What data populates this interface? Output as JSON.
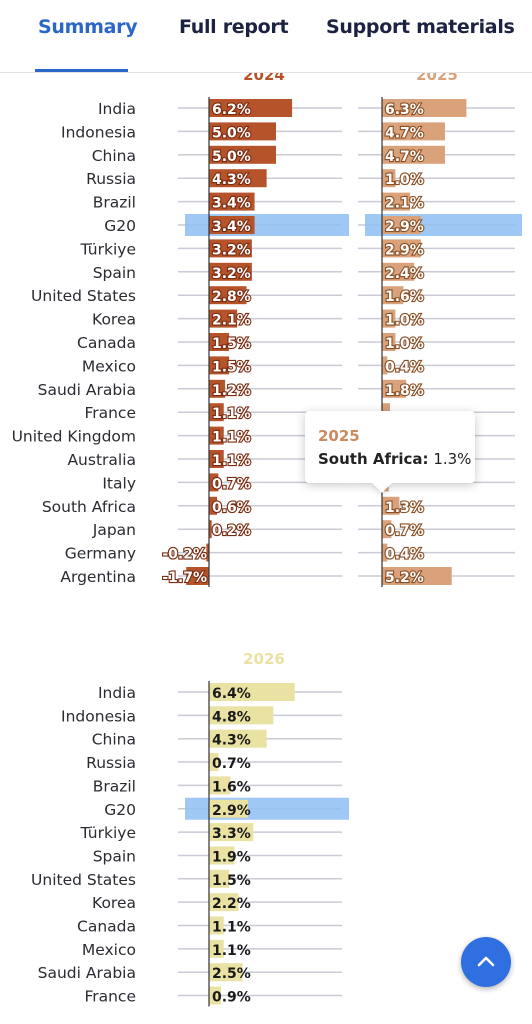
{
  "tabs": [
    {
      "label": "Summary",
      "active": true
    },
    {
      "label": "Full report",
      "active": false
    },
    {
      "label": "Support materials",
      "active": false
    }
  ],
  "tooltip": {
    "title": "2025",
    "country": "South Africa:",
    "value": "1.3%"
  },
  "scroll_top_icon": "chevron-up-icon",
  "colors": {
    "bar_2024": "#b5532a",
    "bar_2025": "#d9a27a",
    "bar_2026": "#e9e2a2",
    "highlight": "#8fbef2",
    "accent": "#2b67c9"
  },
  "chart_data": [
    {
      "type": "bar",
      "orientation": "horizontal",
      "title": "2024",
      "categories": [
        "India",
        "Indonesia",
        "China",
        "Russia",
        "Brazil",
        "G20",
        "Türkiye",
        "Spain",
        "United States",
        "Korea",
        "Canada",
        "Mexico",
        "Saudi Arabia",
        "France",
        "United Kingdom",
        "Australia",
        "Italy",
        "South Africa",
        "Japan",
        "Germany",
        "Argentina"
      ],
      "values": [
        6.2,
        5.0,
        5.0,
        4.3,
        3.4,
        3.4,
        3.2,
        3.2,
        2.8,
        2.1,
        1.5,
        1.5,
        1.2,
        1.1,
        1.1,
        1.1,
        0.7,
        0.6,
        0.2,
        -0.2,
        -1.7
      ],
      "labels": [
        "6.2%",
        "5.0%",
        "5.0%",
        "4.3%",
        "3.4%",
        "3.4%",
        "3.2%",
        "3.2%",
        "2.8%",
        "2.1%",
        "1.5%",
        "1.5%",
        "1.2%",
        "1.1%",
        "1.1%",
        "1.1%",
        "0.7%",
        "0.6%",
        "0.2%",
        "-0.2%",
        "-1.7%"
      ],
      "highlight": "G20"
    },
    {
      "type": "bar",
      "orientation": "horizontal",
      "title": "2025",
      "categories": [
        "India",
        "Indonesia",
        "China",
        "Russia",
        "Brazil",
        "G20",
        "Türkiye",
        "Spain",
        "United States",
        "Korea",
        "Canada",
        "Mexico",
        "Saudi Arabia",
        "France",
        "United Kingdom",
        "Australia",
        "Italy",
        "South Africa",
        "Japan",
        "Germany",
        "Argentina"
      ],
      "values": [
        6.3,
        4.7,
        4.7,
        1.0,
        2.1,
        2.9,
        2.9,
        2.4,
        1.6,
        1.0,
        1.0,
        0.4,
        1.8,
        0.6,
        null,
        null,
        0.5,
        1.3,
        0.7,
        0.4,
        5.2
      ],
      "labels": [
        "6.3%",
        "4.7%",
        "4.7%",
        "1.0%",
        "2.1%",
        "2.9%",
        "2.9%",
        "2.4%",
        "1.6%",
        "1.0%",
        "1.0%",
        "0.4%",
        "1.8%",
        "",
        "",
        "",
        "",
        "1.3%",
        "0.7%",
        "0.4%",
        "5.2%"
      ],
      "highlight": "G20"
    },
    {
      "type": "bar",
      "orientation": "horizontal",
      "title": "2026",
      "categories": [
        "India",
        "Indonesia",
        "China",
        "Russia",
        "Brazil",
        "G20",
        "Türkiye",
        "Spain",
        "United States",
        "Korea",
        "Canada",
        "Mexico",
        "Saudi Arabia",
        "France"
      ],
      "values": [
        6.4,
        4.8,
        4.3,
        0.7,
        1.6,
        2.9,
        3.3,
        1.9,
        1.5,
        2.2,
        1.1,
        1.1,
        2.5,
        0.9
      ],
      "labels": [
        "6.4%",
        "4.8%",
        "4.3%",
        "0.7%",
        "1.6%",
        "2.9%",
        "3.3%",
        "1.9%",
        "1.5%",
        "2.2%",
        "1.1%",
        "1.1%",
        "2.5%",
        "0.9%"
      ],
      "highlight": "G20"
    }
  ]
}
